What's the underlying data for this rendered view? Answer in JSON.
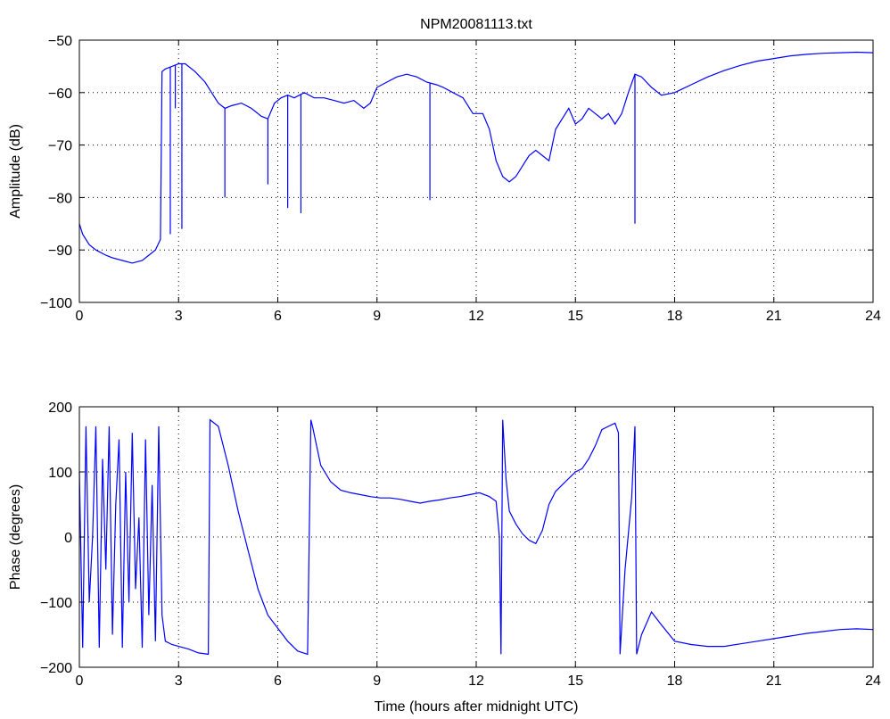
{
  "chart_data": [
    {
      "type": "line",
      "title": "NPM20081113.txt",
      "xlabel": "",
      "ylabel": "Amplitude (dB)",
      "xlim": [
        0,
        24
      ],
      "ylim": [
        -100,
        -50
      ],
      "xticks": [
        0,
        3,
        6,
        9,
        12,
        15,
        18,
        21,
        24
      ],
      "yticks": [
        -100,
        -90,
        -80,
        -70,
        -60,
        -50
      ],
      "x_tick_labels": [
        "0",
        "3",
        "6",
        "9",
        "12",
        "15",
        "18",
        "21",
        "24"
      ],
      "y_tick_labels": [
        "−100",
        "−90",
        "−80",
        "−70",
        "−60",
        "−50"
      ],
      "grid": true,
      "series": [
        {
          "color": "#0000ff",
          "x": [
            0,
            0.1,
            0.3,
            0.5,
            0.8,
            1.0,
            1.3,
            1.6,
            1.9,
            2.1,
            2.3,
            2.45,
            2.5,
            2.6,
            2.8,
            3.0,
            3.2,
            3.5,
            3.8,
            4.0,
            4.2,
            4.4,
            4.6,
            4.9,
            5.2,
            5.5,
            5.7,
            5.9,
            6.1,
            6.3,
            6.5,
            6.8,
            7.1,
            7.4,
            7.7,
            8.0,
            8.3,
            8.6,
            8.8,
            9.0,
            9.3,
            9.6,
            9.9,
            10.2,
            10.5,
            10.8,
            11.0,
            11.3,
            11.6,
            11.9,
            12.2,
            12.4,
            12.6,
            12.8,
            13.0,
            13.2,
            13.4,
            13.6,
            13.8,
            14.0,
            14.2,
            14.4,
            14.6,
            14.8,
            15.0,
            15.2,
            15.4,
            15.6,
            15.8,
            16.0,
            16.2,
            16.4,
            16.6,
            16.8,
            17.0,
            17.3,
            17.6,
            18.0,
            18.5,
            19.0,
            19.5,
            20.0,
            20.5,
            21.0,
            21.5,
            22.0,
            22.5,
            23.0,
            23.5,
            24.0
          ],
          "y": [
            -85,
            -87,
            -89,
            -90,
            -91,
            -91.5,
            -92,
            -92.5,
            -92,
            -91,
            -90,
            -88,
            -56,
            -55.5,
            -55,
            -54.5,
            -54.5,
            -56,
            -58,
            -60,
            -62,
            -63,
            -62.5,
            -62,
            -63,
            -64.5,
            -65,
            -62,
            -61,
            -60.5,
            -61,
            -60,
            -61,
            -61,
            -61.5,
            -62,
            -61.5,
            -63,
            -62,
            -59,
            -58,
            -57,
            -56.5,
            -57,
            -58,
            -58.5,
            -59,
            -60,
            -61,
            -64,
            -64,
            -67,
            -73,
            -76,
            -77,
            -76,
            -74,
            -72,
            -71,
            -72,
            -73,
            -67,
            -65,
            -63,
            -66,
            -65,
            -63,
            -64,
            -65,
            -64,
            -66,
            -64,
            -60,
            -56.5,
            -57,
            -59,
            -60.5,
            -60,
            -58.5,
            -57,
            -55.8,
            -54.8,
            -54,
            -53.5,
            -53,
            -52.7,
            -52.5,
            -52.4,
            -52.3,
            -52.4
          ]
        }
      ],
      "spikes": [
        {
          "x": 2.75,
          "y_min": -87
        },
        {
          "x": 2.9,
          "y_min": -63
        },
        {
          "x": 3.1,
          "y_min": -86
        },
        {
          "x": 4.4,
          "y_min": -80
        },
        {
          "x": 5.7,
          "y_min": -77.5
        },
        {
          "x": 6.3,
          "y_min": -82
        },
        {
          "x": 6.7,
          "y_min": -83
        },
        {
          "x": 10.6,
          "y_min": -80.5
        },
        {
          "x": 16.8,
          "y_min": -85
        }
      ]
    },
    {
      "type": "line",
      "title": "",
      "xlabel": "Time (hours after midnight UTC)",
      "ylabel": "Phase (degrees)",
      "xlim": [
        0,
        24
      ],
      "ylim": [
        -200,
        200
      ],
      "xticks": [
        0,
        3,
        6,
        9,
        12,
        15,
        18,
        21,
        24
      ],
      "yticks": [
        -200,
        -100,
        0,
        100,
        200
      ],
      "x_tick_labels": [
        "0",
        "3",
        "6",
        "9",
        "12",
        "15",
        "18",
        "21",
        "24"
      ],
      "y_tick_labels": [
        "−200",
        "−100",
        "0",
        "100",
        "200"
      ],
      "grid": true,
      "series": [
        {
          "color": "#0000ff",
          "x": [
            0,
            0.1,
            0.2,
            0.3,
            0.4,
            0.5,
            0.6,
            0.7,
            0.8,
            0.9,
            1.0,
            1.1,
            1.2,
            1.3,
            1.4,
            1.5,
            1.6,
            1.7,
            1.8,
            1.9,
            2.0,
            2.1,
            2.2,
            2.3,
            2.4,
            2.5,
            2.6,
            2.8,
            3.0,
            3.3,
            3.6,
            3.9,
            3.95,
            4.2,
            4.5,
            4.8,
            5.1,
            5.4,
            5.7,
            6.0,
            6.3,
            6.6,
            6.9,
            7.0,
            7.05,
            7.3,
            7.6,
            7.9,
            8.2,
            8.5,
            8.8,
            9.1,
            9.4,
            9.7,
            10.0,
            10.3,
            10.6,
            10.9,
            11.2,
            11.5,
            11.8,
            12.1,
            12.4,
            12.6,
            12.7,
            12.75,
            12.8,
            12.9,
            13.0,
            13.2,
            13.4,
            13.6,
            13.8,
            14.0,
            14.2,
            14.4,
            14.6,
            14.8,
            15.0,
            15.2,
            15.4,
            15.6,
            15.8,
            16.0,
            16.2,
            16.3,
            16.35,
            16.5,
            16.7,
            16.8,
            16.85,
            17.0,
            17.3,
            17.6,
            18.0,
            18.5,
            19.0,
            19.5,
            20.0,
            20.5,
            21.0,
            21.5,
            22.0,
            22.5,
            23.0,
            23.5,
            24.0
          ],
          "y": [
            100,
            -170,
            170,
            -100,
            0,
            170,
            -170,
            120,
            -50,
            170,
            -150,
            50,
            150,
            -170,
            100,
            -100,
            160,
            -80,
            30,
            -170,
            150,
            -120,
            80,
            -160,
            170,
            -120,
            -160,
            -165,
            -168,
            -172,
            -178,
            -180,
            180,
            170,
            110,
            40,
            -20,
            -80,
            -120,
            -140,
            -160,
            -175,
            -180,
            180,
            170,
            110,
            85,
            72,
            68,
            65,
            62,
            60,
            60,
            58,
            55,
            52,
            55,
            57,
            60,
            62,
            65,
            68,
            62,
            55,
            0,
            -180,
            180,
            90,
            40,
            20,
            5,
            -5,
            -10,
            10,
            50,
            70,
            80,
            90,
            100,
            105,
            120,
            140,
            165,
            170,
            175,
            160,
            -180,
            -50,
            60,
            170,
            -180,
            -150,
            -115,
            -135,
            -160,
            -165,
            -168,
            -168,
            -164,
            -160,
            -156,
            -152,
            -148,
            -145,
            -142,
            -141,
            -142
          ]
        }
      ],
      "spikes": []
    }
  ]
}
